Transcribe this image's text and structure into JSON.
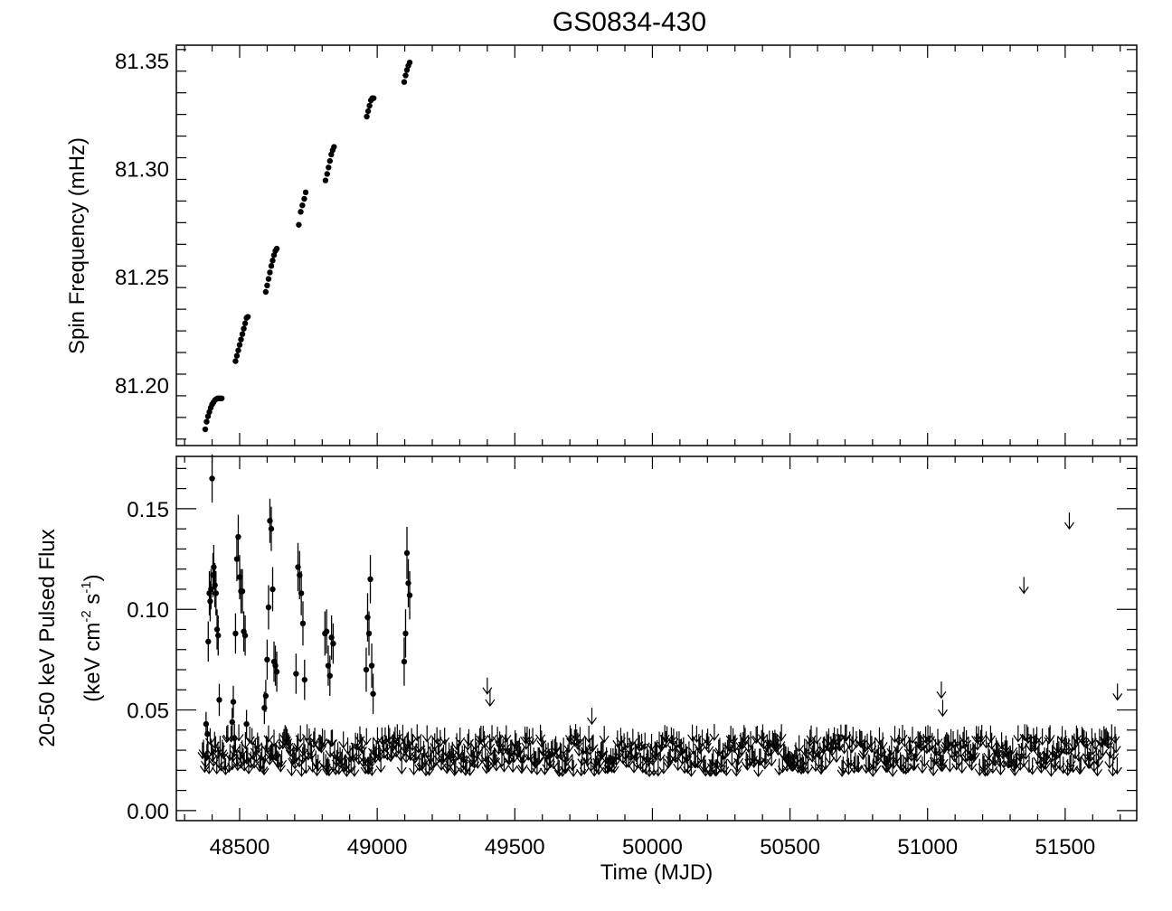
{
  "chart_data": [
    {
      "type": "scatter",
      "title": "GS0834-430",
      "ylabel": "Spin Frequency (mHz)",
      "xlim": [
        48270,
        51760
      ],
      "ylim": [
        81.172,
        81.357
      ],
      "yticks": [
        "81.20",
        "81.25",
        "81.30",
        "81.35"
      ],
      "ytick_values": [
        81.2,
        81.25,
        81.3,
        81.35
      ],
      "grid": false,
      "series": [
        {
          "marker": "filled-circle",
          "x": [
            48375,
            48380,
            48385,
            48390,
            48395,
            48400,
            48405,
            48410,
            48415,
            48420,
            48425,
            48430,
            48435,
            48485,
            48490,
            48495,
            48500,
            48505,
            48510,
            48515,
            48520,
            48525,
            48530,
            48595,
            48600,
            48605,
            48610,
            48615,
            48620,
            48625,
            48630,
            48635,
            48715,
            48722,
            48728,
            48735,
            48740,
            48812,
            48818,
            48823,
            48828,
            48833,
            48838,
            48843,
            48962,
            48967,
            48972,
            48977,
            48982,
            48987,
            49098,
            49103,
            49108,
            49113,
            49118
          ],
          "y": [
            81.1795,
            81.183,
            81.1855,
            81.1875,
            81.1895,
            81.191,
            81.192,
            81.193,
            81.1935,
            81.1938,
            81.1938,
            81.1938,
            81.1938,
            81.211,
            81.2135,
            81.216,
            81.2185,
            81.221,
            81.2235,
            81.226,
            81.2285,
            81.231,
            81.2315,
            81.243,
            81.246,
            81.249,
            81.252,
            81.255,
            81.2575,
            81.26,
            81.262,
            81.263,
            81.274,
            81.28,
            81.283,
            81.286,
            81.289,
            81.2945,
            81.2975,
            81.3005,
            81.3035,
            81.3065,
            81.3085,
            81.31,
            81.324,
            81.3265,
            81.329,
            81.3315,
            81.3325,
            81.3325,
            81.34,
            81.343,
            81.3455,
            81.3475,
            81.349
          ]
        }
      ]
    },
    {
      "type": "scatter",
      "xlabel": "Time (MJD)",
      "ylabel_line1": "20-50 keV Pulsed Flux",
      "ylabel_line2_pre": "(keV cm",
      "ylabel_sup1": "-2",
      "ylabel_mid": " s",
      "ylabel_sup2": "-1",
      "ylabel_post": ")",
      "xlim": [
        48270,
        51760
      ],
      "ylim": [
        -0.005,
        0.176
      ],
      "xticks": [
        "48500",
        "49000",
        "49500",
        "50000",
        "50500",
        "51000",
        "51500"
      ],
      "xtick_values": [
        48500,
        49000,
        49500,
        50000,
        50500,
        51000,
        51500
      ],
      "yticks": [
        "0.00",
        "0.05",
        "0.10",
        "0.15"
      ],
      "ytick_values": [
        0.0,
        0.05,
        0.1,
        0.15
      ],
      "grid": false,
      "series": [
        {
          "name": "detections",
          "marker": "filled-circle-errorbar",
          "x": [
            48378,
            48383,
            48386,
            48390,
            48393,
            48396,
            48400,
            48403,
            48406,
            48410,
            48414,
            48418,
            48422,
            48426,
            48473,
            48477,
            48481,
            48485,
            48490,
            48495,
            48500,
            48505,
            48510,
            48515,
            48520,
            48525,
            48590,
            48595,
            48600,
            48605,
            48610,
            48615,
            48620,
            48625,
            48630,
            48635,
            48705,
            48712,
            48718,
            48724,
            48730,
            48736,
            48810,
            48816,
            48822,
            48828,
            48834,
            48840,
            48960,
            48965,
            48970,
            48975,
            48980,
            48985,
            49098,
            49103,
            49108,
            49113,
            49118
          ],
          "y": [
            0.043,
            0.038,
            0.084,
            0.108,
            0.104,
            0.11,
            0.165,
            0.117,
            0.121,
            0.112,
            0.108,
            0.09,
            0.087,
            0.055,
            0.044,
            0.054,
            0.036,
            0.088,
            0.125,
            0.136,
            0.116,
            0.109,
            0.109,
            0.089,
            0.087,
            0.043,
            0.051,
            0.057,
            0.075,
            0.101,
            0.144,
            0.14,
            0.11,
            0.074,
            0.072,
            0.069,
            0.068,
            0.121,
            0.117,
            0.108,
            0.093,
            0.065,
            0.088,
            0.089,
            0.072,
            0.067,
            0.086,
            0.083,
            0.07,
            0.096,
            0.088,
            0.115,
            0.072,
            0.058,
            0.074,
            0.088,
            0.128,
            0.113,
            0.107
          ],
          "err": [
            0.006,
            0.006,
            0.01,
            0.011,
            0.01,
            0.01,
            0.012,
            0.011,
            0.011,
            0.011,
            0.011,
            0.01,
            0.01,
            0.008,
            0.007,
            0.008,
            0.007,
            0.01,
            0.011,
            0.011,
            0.011,
            0.011,
            0.011,
            0.01,
            0.01,
            0.007,
            0.008,
            0.008,
            0.01,
            0.011,
            0.011,
            0.011,
            0.011,
            0.01,
            0.01,
            0.01,
            0.01,
            0.012,
            0.012,
            0.011,
            0.011,
            0.01,
            0.011,
            0.011,
            0.01,
            0.01,
            0.011,
            0.01,
            0.011,
            0.012,
            0.011,
            0.012,
            0.011,
            0.01,
            0.012,
            0.012,
            0.013,
            0.012,
            0.012
          ]
        },
        {
          "name": "upper_limits",
          "marker": "down-arrow",
          "x_start": 48365,
          "x_end": 51690,
          "x_step": 4,
          "typical_level": [
            0.017,
            0.035
          ],
          "isolated_x": [
            49400,
            49410,
            49780,
            51050,
            51055,
            51350,
            51515,
            51690
          ],
          "isolated_y": [
            0.058,
            0.052,
            0.043,
            0.056,
            0.047,
            0.108,
            0.14,
            0.055
          ]
        }
      ]
    }
  ]
}
